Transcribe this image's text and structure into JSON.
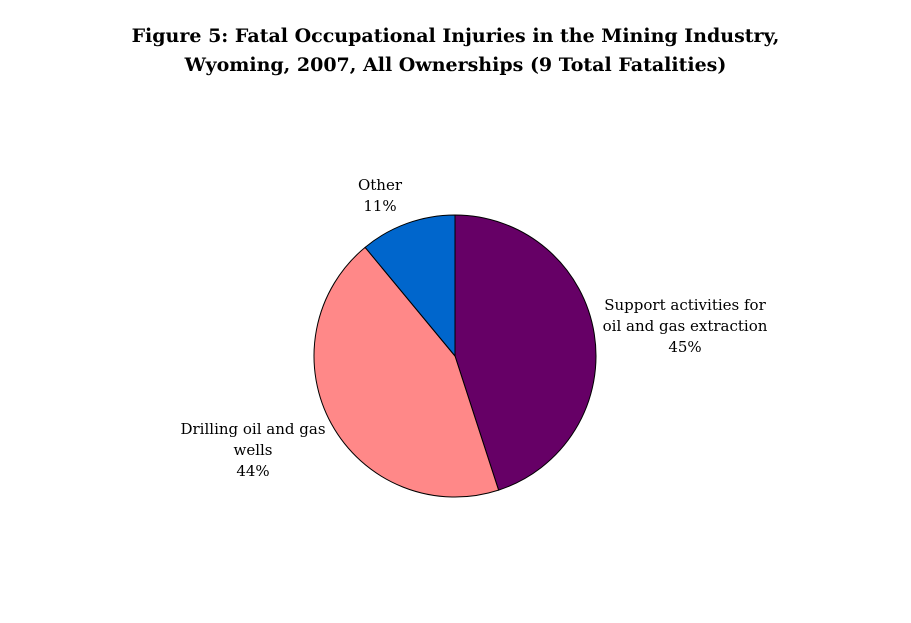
{
  "chart_data": {
    "type": "pie",
    "title_lines": [
      "Figure 5: Fatal Occupational Injuries in the Mining Industry,",
      "Wyoming, 2007, All Ownerships (9 Total Fatalities)"
    ],
    "slices": [
      {
        "label_lines": [
          "Support activities for",
          "oil and gas extraction"
        ],
        "percent_label": "45%",
        "value": 45,
        "color": "#660066"
      },
      {
        "label_lines": [
          "Drilling oil and gas",
          "wells"
        ],
        "percent_label": "44%",
        "value": 44,
        "color": "#ff8888"
      },
      {
        "label_lines": [
          "Other"
        ],
        "percent_label": "11%",
        "value": 11,
        "color": "#0066cc"
      }
    ],
    "start_position": "top",
    "direction": "clockwise",
    "legend": "none"
  }
}
